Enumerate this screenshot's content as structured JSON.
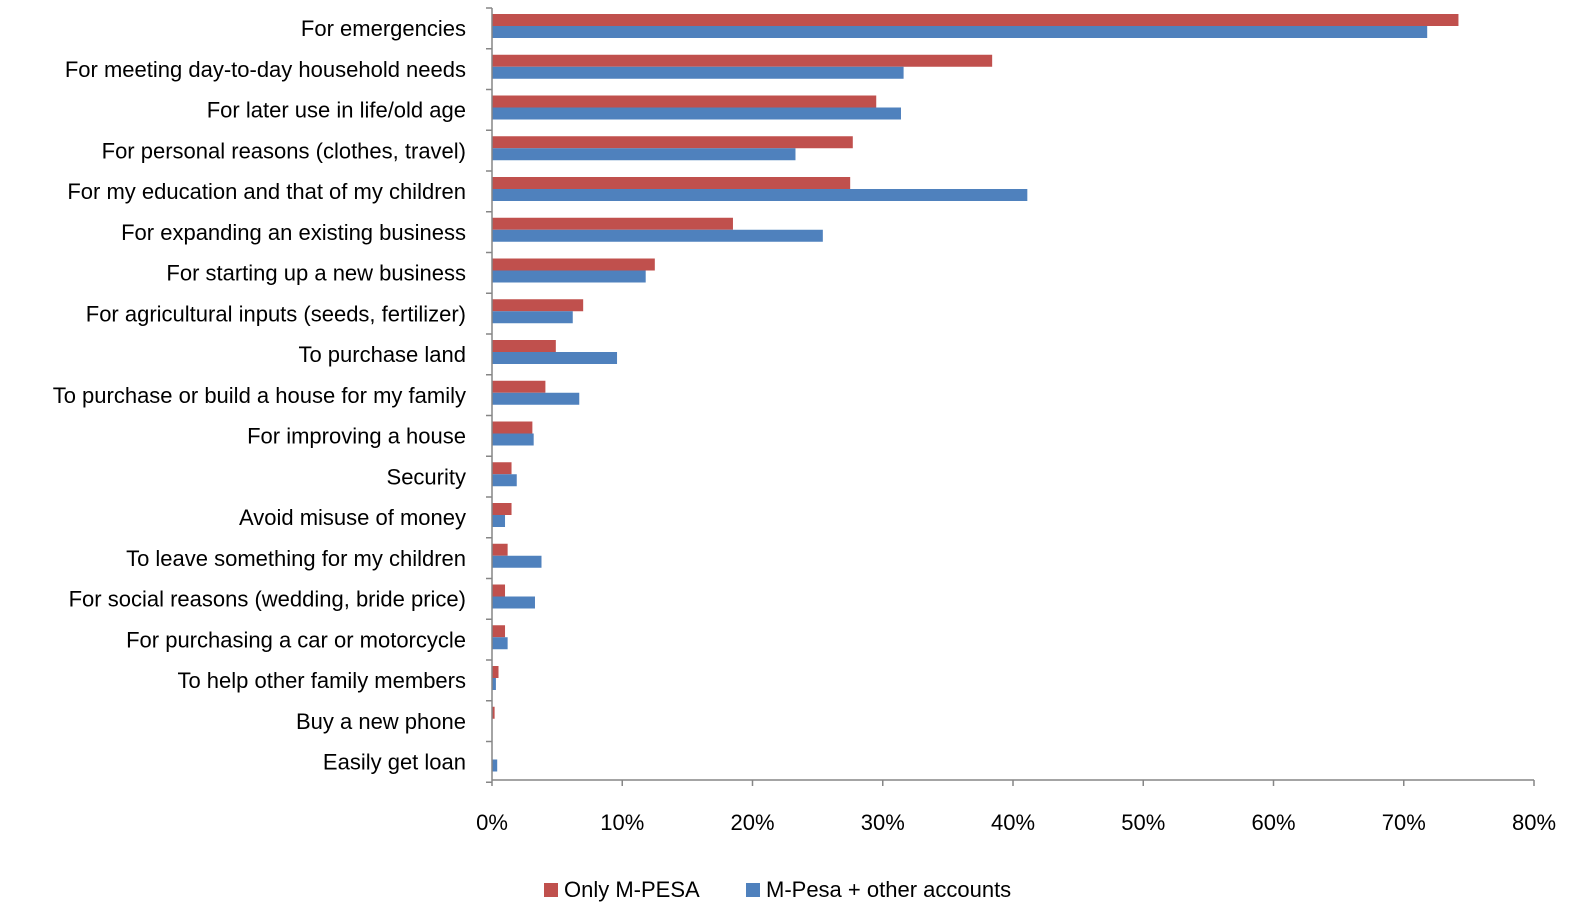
{
  "chart_data": {
    "type": "bar",
    "orientation": "horizontal",
    "categories": [
      "For emergencies",
      "For meeting day-to-day household needs",
      "For later use in life/old age",
      "For personal reasons (clothes, travel)",
      "For my education and that of my children",
      "For expanding an existing business",
      "For starting up a new business",
      "For agricultural inputs (seeds, fertilizer)",
      "To purchase land",
      "To purchase or build a house for my family",
      "For improving a house",
      "Security",
      "Avoid misuse of money",
      "To leave something for my children",
      "For social reasons (wedding, bride price)",
      "For purchasing a car or motorcycle",
      "To help other family members",
      "Buy a new phone",
      "Easily get loan"
    ],
    "series": [
      {
        "name": "Only M-PESA",
        "color": "#c0504d",
        "values": [
          74.2,
          38.4,
          29.5,
          27.7,
          27.5,
          18.5,
          12.5,
          7.0,
          4.9,
          4.1,
          3.1,
          1.5,
          1.5,
          1.2,
          1.0,
          1.0,
          0.5,
          0.2,
          0.0
        ]
      },
      {
        "name": "M-Pesa + other accounts",
        "color": "#4f81bd",
        "values": [
          71.8,
          31.6,
          31.4,
          23.3,
          41.1,
          25.4,
          11.8,
          6.2,
          9.6,
          6.7,
          3.2,
          1.9,
          1.0,
          3.8,
          3.3,
          1.2,
          0.3,
          0.0,
          0.4
        ]
      }
    ],
    "xlim": [
      0,
      80
    ],
    "xticks": [
      0,
      10,
      20,
      30,
      40,
      50,
      60,
      70,
      80
    ],
    "xtick_labels": [
      "0%",
      "10%",
      "20%",
      "30%",
      "40%",
      "50%",
      "60%",
      "70%",
      "80%"
    ],
    "title": "",
    "xlabel": "",
    "ylabel": "",
    "grid": false,
    "legend_position": "bottom"
  }
}
